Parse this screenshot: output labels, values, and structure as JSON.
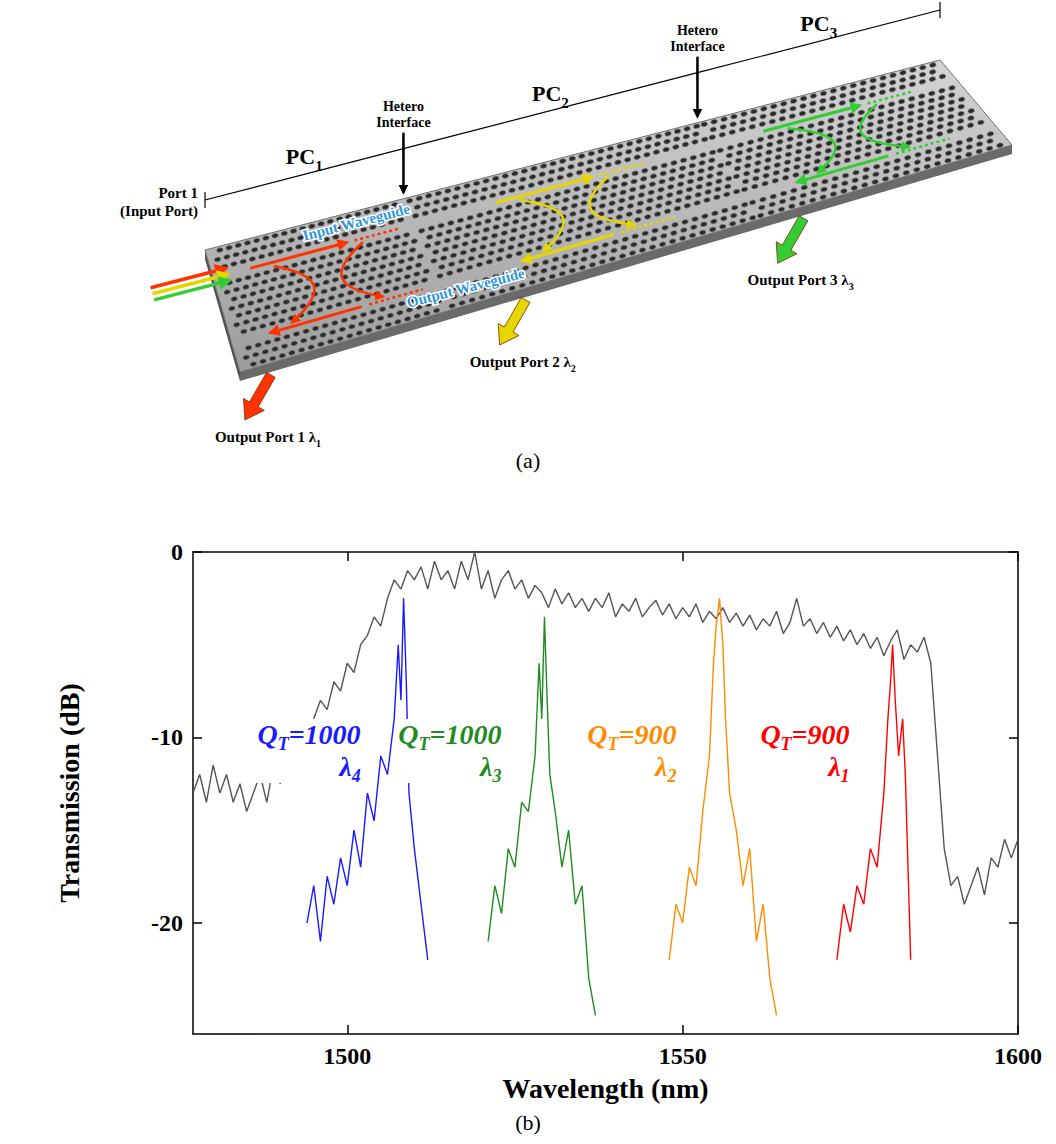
{
  "diagram": {
    "panel_label": "(a)",
    "input_port": "Port 1",
    "input_port_note": "(Input Port)",
    "interfaces": [
      "Hetero Interface",
      "Hetero Interface"
    ],
    "sections": [
      {
        "label": "PC",
        "subscript": "1"
      },
      {
        "label": "PC",
        "subscript": "2"
      },
      {
        "label": "PC",
        "subscript": "3"
      }
    ],
    "input_waveguide": "Input Waveguide",
    "output_waveguide": "Output Waveguide",
    "channels": [
      {
        "port": "Output Port 1",
        "wavelength": "λ",
        "subscript": "1",
        "color": "#ff3300"
      },
      {
        "port": "Output Port 2",
        "wavelength": "λ",
        "subscript": "2",
        "color": "#e6d600"
      },
      {
        "port": "Output Port 3",
        "wavelength": "λ",
        "subscript": "3",
        "color": "#33cc33"
      }
    ]
  },
  "chart_data": {
    "type": "line",
    "panel_label": "(b)",
    "x_label": "Wavelength (nm)",
    "y_label": "Transmission (dB)",
    "xlim": [
      1477,
      1600
    ],
    "xticks": [
      1500,
      1550,
      1600
    ],
    "ylim": [
      -26,
      0
    ],
    "yticks": [
      -20,
      -10,
      0
    ],
    "grid": false,
    "series": [
      {
        "color": "#555555",
        "x": [
          1477,
          1478,
          1479,
          1480,
          1481,
          1482,
          1483,
          1484,
          1485,
          1486,
          1487,
          1488,
          1489,
          1490,
          1491,
          1492,
          1493,
          1494,
          1495,
          1496,
          1497,
          1498,
          1499,
          1500,
          1501,
          1502,
          1503,
          1504,
          1505,
          1506,
          1507,
          1508,
          1509,
          1510,
          1511,
          1512,
          1513,
          1514,
          1515,
          1516,
          1517,
          1518,
          1519,
          1520,
          1521,
          1522,
          1523,
          1524,
          1525,
          1526,
          1527,
          1528,
          1529,
          1530,
          1531,
          1532,
          1533,
          1534,
          1535,
          1536,
          1537,
          1538,
          1539,
          1540,
          1541,
          1542,
          1543,
          1544,
          1545,
          1546,
          1547,
          1548,
          1549,
          1550,
          1551,
          1552,
          1553,
          1554,
          1555,
          1556,
          1557,
          1558,
          1559,
          1560,
          1561,
          1562,
          1563,
          1564,
          1565,
          1566,
          1567,
          1568,
          1569,
          1570,
          1571,
          1572,
          1573,
          1574,
          1575,
          1576,
          1577,
          1578,
          1579,
          1580,
          1581,
          1582,
          1583,
          1584,
          1585,
          1586,
          1587,
          1588,
          1589,
          1590,
          1591,
          1592,
          1593,
          1594,
          1595,
          1596,
          1597,
          1598,
          1599,
          1600
        ],
        "values": [
          -13,
          -12,
          -13.5,
          -11.5,
          -13,
          -12,
          -13.5,
          -12.5,
          -14,
          -13,
          -12,
          -13.5,
          -11.5,
          -12.5,
          -11,
          -10.5,
          -11,
          -9.5,
          -9,
          -8,
          -8.5,
          -7,
          -7.5,
          -6,
          -6.5,
          -5,
          -4.5,
          -3.5,
          -4,
          -2.5,
          -1.5,
          -2,
          -1,
          -1.5,
          -0.8,
          -2,
          -0.5,
          -1.5,
          -1,
          -2,
          -0.5,
          -1.5,
          0,
          -2,
          -1,
          -2.5,
          -1.5,
          -1,
          -2,
          -1.5,
          -2.5,
          -1.8,
          -2.2,
          -3,
          -2,
          -2.8,
          -2.2,
          -3,
          -2.5,
          -3.2,
          -2.5,
          -3,
          -2.2,
          -3.5,
          -2.8,
          -3.2,
          -2.5,
          -3.5,
          -3,
          -2.6,
          -3.4,
          -2.8,
          -3.6,
          -3,
          -3.5,
          -2.8,
          -3.8,
          -3.2,
          -3.6,
          -3,
          -3.8,
          -3.3,
          -4,
          -3.4,
          -4.2,
          -3.6,
          -4,
          -3.2,
          -4.4,
          -3.8,
          -2.5,
          -4,
          -3.6,
          -4.4,
          -3.8,
          -4.6,
          -4,
          -4.8,
          -4.2,
          -5,
          -4.4,
          -5.2,
          -4.6,
          -5.6,
          -4.8,
          -4.2,
          -5.8,
          -5,
          -5.4,
          -4.6,
          -6,
          -11,
          -16,
          -18,
          -17.5,
          -19,
          -18,
          -17,
          -18.5,
          -16.5,
          -17,
          -15.5,
          -16.5,
          -15.5
        ]
      },
      {
        "color": "#1a1aff",
        "x": [
          1494,
          1495,
          1496,
          1497,
          1498,
          1499,
          1500,
          1501,
          1502,
          1503,
          1504,
          1505,
          1506,
          1507,
          1507.6,
          1508,
          1508.4,
          1508.8,
          1509.2,
          1510,
          1511,
          1512
        ],
        "values": [
          -20,
          -18,
          -21,
          -17.5,
          -19,
          -16.5,
          -18,
          -15,
          -17,
          -13,
          -14.5,
          -11,
          -12,
          -9,
          -5,
          -8,
          -2.5,
          -7,
          -13,
          -16,
          -19,
          -22
        ],
        "annotation": {
          "symbol": "Q",
          "subscript": "T",
          "text": "=1000"
        },
        "wavelength": {
          "symbol": "λ",
          "subscript": "4"
        }
      },
      {
        "color": "#1f8c1f",
        "x": [
          1521,
          1522,
          1523,
          1524,
          1525,
          1526,
          1527,
          1528,
          1528.6,
          1529,
          1529.4,
          1529.8,
          1530.2,
          1531,
          1532,
          1533,
          1534,
          1535,
          1536,
          1537
        ],
        "values": [
          -21,
          -18,
          -19.5,
          -16,
          -17,
          -13.5,
          -14,
          -11,
          -6,
          -9,
          -3.5,
          -8,
          -12,
          -14,
          -17,
          -15,
          -19,
          -18,
          -23,
          -25
        ],
        "annotation": {
          "symbol": "Q",
          "subscript": "T",
          "text": "=1000"
        },
        "wavelength": {
          "symbol": "λ",
          "subscript": "3"
        }
      },
      {
        "color": "#ff8c00",
        "x": [
          1548,
          1549,
          1550,
          1551,
          1552,
          1553,
          1554,
          1554.6,
          1555,
          1555.5,
          1556,
          1556.4,
          1557,
          1558,
          1559,
          1560,
          1561,
          1562,
          1563,
          1564
        ],
        "values": [
          -22,
          -19,
          -20,
          -17,
          -18,
          -14,
          -11,
          -6,
          -4,
          -2.5,
          -5,
          -9,
          -13,
          -15,
          -18,
          -16,
          -21,
          -19,
          -23,
          -25
        ],
        "annotation": {
          "symbol": "Q",
          "subscript": "T",
          "text": "=900"
        },
        "wavelength": {
          "symbol": "λ",
          "subscript": "2"
        }
      },
      {
        "color": "#ff0000",
        "x": [
          1573,
          1574,
          1575,
          1576,
          1577,
          1578,
          1579,
          1580,
          1580.6,
          1581,
          1581.3,
          1581.7,
          1582.2,
          1582.8,
          1583.2,
          1583.6,
          1584
        ],
        "values": [
          -22,
          -19,
          -20.5,
          -18,
          -19,
          -16,
          -17,
          -13,
          -9,
          -7,
          -5,
          -8,
          -11,
          -9,
          -12,
          -17,
          -22
        ],
        "annotation": {
          "symbol": "Q",
          "subscript": "T",
          "text": "=900"
        },
        "wavelength": {
          "symbol": "λ",
          "subscript": "1"
        }
      }
    ]
  }
}
